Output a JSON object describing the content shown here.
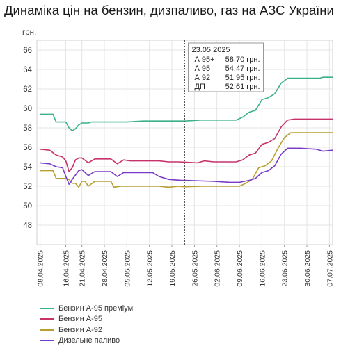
{
  "chart_data": {
    "type": "line",
    "title": "Динаміка цін на бензин, дизпаливо, газ на АЗС України",
    "ylabel": "грн.",
    "ylim": [
      46,
      67
    ],
    "yticks": [
      48,
      50,
      52,
      54,
      56,
      58,
      60,
      62,
      64,
      66
    ],
    "xlim": [
      "2025-04-07",
      "2025-07-08"
    ],
    "xticks": [
      "08.04.2025",
      "16.04.2025",
      "21.04.2025",
      "28.04.2025",
      "05.05.2025",
      "12.05.2025",
      "19.05.2025",
      "26.05.2025",
      "02.06.2025",
      "09.06.2025",
      "16.06.2025",
      "23.06.2025",
      "30.06.2025",
      "07.07.2025"
    ],
    "grid": true,
    "legend_position": "bottom",
    "cursor": {
      "date": "2025-05-23",
      "label": "23.05.2025",
      "rows": [
        {
          "name": "А 95+",
          "value": "58,70 грн."
        },
        {
          "name": "А 95",
          "value": "54,47 грн."
        },
        {
          "name": "А 92",
          "value": "51,95 грн."
        },
        {
          "name": "ДП",
          "value": "52,61 грн."
        }
      ]
    },
    "series": [
      {
        "name": "Бензин А-95 преміум",
        "color": "#3cb08a",
        "points": [
          [
            "2025-04-08",
            59.4
          ],
          [
            "2025-04-12",
            59.4
          ],
          [
            "2025-04-13",
            58.6
          ],
          [
            "2025-04-16",
            58.6
          ],
          [
            "2025-04-17",
            58.0
          ],
          [
            "2025-04-18",
            57.7
          ],
          [
            "2025-04-19",
            57.9
          ],
          [
            "2025-04-20",
            58.3
          ],
          [
            "2025-04-21",
            58.5
          ],
          [
            "2025-04-23",
            58.5
          ],
          [
            "2025-04-24",
            58.6
          ],
          [
            "2025-05-01",
            58.6
          ],
          [
            "2025-05-05",
            58.6
          ],
          [
            "2025-05-10",
            58.7
          ],
          [
            "2025-05-20",
            58.7
          ],
          [
            "2025-05-23",
            58.7
          ],
          [
            "2025-05-28",
            58.8
          ],
          [
            "2025-06-05",
            58.8
          ],
          [
            "2025-06-08",
            58.8
          ],
          [
            "2025-06-10",
            59.1
          ],
          [
            "2025-06-12",
            59.6
          ],
          [
            "2025-06-14",
            59.8
          ],
          [
            "2025-06-16",
            60.9
          ],
          [
            "2025-06-18",
            61.1
          ],
          [
            "2025-06-20",
            61.5
          ],
          [
            "2025-06-22",
            62.6
          ],
          [
            "2025-06-24",
            63.1
          ],
          [
            "2025-06-28",
            63.1
          ],
          [
            "2025-07-04",
            63.1
          ],
          [
            "2025-07-05",
            63.2
          ],
          [
            "2025-07-08",
            63.2
          ]
        ]
      },
      {
        "name": "Бензин А-95",
        "color": "#c8326a",
        "points": [
          [
            "2025-04-08",
            55.8
          ],
          [
            "2025-04-11",
            55.7
          ],
          [
            "2025-04-13",
            55.2
          ],
          [
            "2025-04-15",
            55.0
          ],
          [
            "2025-04-16",
            54.6
          ],
          [
            "2025-04-17",
            53.5
          ],
          [
            "2025-04-18",
            53.9
          ],
          [
            "2025-04-19",
            54.7
          ],
          [
            "2025-04-20",
            54.9
          ],
          [
            "2025-04-21",
            54.9
          ],
          [
            "2025-04-23",
            54.4
          ],
          [
            "2025-04-25",
            54.8
          ],
          [
            "2025-04-28",
            54.8
          ],
          [
            "2025-04-30",
            54.8
          ],
          [
            "2025-05-02",
            54.3
          ],
          [
            "2025-05-04",
            54.7
          ],
          [
            "2025-05-06",
            54.6
          ],
          [
            "2025-05-10",
            54.6
          ],
          [
            "2025-05-15",
            54.6
          ],
          [
            "2025-05-18",
            54.5
          ],
          [
            "2025-05-21",
            54.5
          ],
          [
            "2025-05-23",
            54.47
          ],
          [
            "2025-05-27",
            54.4
          ],
          [
            "2025-05-29",
            54.6
          ],
          [
            "2025-06-01",
            54.5
          ],
          [
            "2025-06-06",
            54.5
          ],
          [
            "2025-06-08",
            54.5
          ],
          [
            "2025-06-10",
            54.7
          ],
          [
            "2025-06-12",
            55.2
          ],
          [
            "2025-06-14",
            55.4
          ],
          [
            "2025-06-16",
            56.3
          ],
          [
            "2025-06-18",
            56.5
          ],
          [
            "2025-06-20",
            56.9
          ],
          [
            "2025-06-22",
            58.1
          ],
          [
            "2025-06-24",
            58.8
          ],
          [
            "2025-06-26",
            58.9
          ],
          [
            "2025-07-08",
            58.9
          ]
        ]
      },
      {
        "name": "Бензин А-92",
        "color": "#b8a030",
        "points": [
          [
            "2025-04-08",
            53.6
          ],
          [
            "2025-04-12",
            53.6
          ],
          [
            "2025-04-13",
            52.8
          ],
          [
            "2025-04-16",
            52.8
          ],
          [
            "2025-04-17",
            52.7
          ],
          [
            "2025-04-18",
            52.3
          ],
          [
            "2025-04-19",
            52.3
          ],
          [
            "2025-04-20",
            51.9
          ],
          [
            "2025-04-21",
            52.5
          ],
          [
            "2025-04-22",
            52.5
          ],
          [
            "2025-04-23",
            52.0
          ],
          [
            "2025-04-25",
            52.5
          ],
          [
            "2025-04-28",
            52.5
          ],
          [
            "2025-04-30",
            52.5
          ],
          [
            "2025-05-01",
            51.9
          ],
          [
            "2025-05-03",
            52.0
          ],
          [
            "2025-05-10",
            52.0
          ],
          [
            "2025-05-15",
            52.0
          ],
          [
            "2025-05-18",
            51.9
          ],
          [
            "2025-05-21",
            52.0
          ],
          [
            "2025-05-23",
            51.95
          ],
          [
            "2025-05-28",
            52.0
          ],
          [
            "2025-06-06",
            52.0
          ],
          [
            "2025-06-09",
            52.0
          ],
          [
            "2025-06-11",
            52.3
          ],
          [
            "2025-06-13",
            52.7
          ],
          [
            "2025-06-15",
            53.9
          ],
          [
            "2025-06-17",
            54.1
          ],
          [
            "2025-06-19",
            54.6
          ],
          [
            "2025-06-21",
            55.9
          ],
          [
            "2025-06-23",
            57.0
          ],
          [
            "2025-06-25",
            57.5
          ],
          [
            "2025-07-03",
            57.5
          ],
          [
            "2025-07-08",
            57.5
          ]
        ]
      },
      {
        "name": "Дизельне паливо",
        "color": "#7a3ac8",
        "points": [
          [
            "2025-04-08",
            54.4
          ],
          [
            "2025-04-11",
            54.3
          ],
          [
            "2025-04-13",
            54.0
          ],
          [
            "2025-04-15",
            53.9
          ],
          [
            "2025-04-16",
            53.0
          ],
          [
            "2025-04-17",
            52.2
          ],
          [
            "2025-04-18",
            52.7
          ],
          [
            "2025-04-20",
            53.6
          ],
          [
            "2025-04-21",
            53.7
          ],
          [
            "2025-04-23",
            53.1
          ],
          [
            "2025-04-25",
            53.5
          ],
          [
            "2025-04-28",
            53.5
          ],
          [
            "2025-04-30",
            53.5
          ],
          [
            "2025-05-02",
            53.0
          ],
          [
            "2025-05-04",
            53.4
          ],
          [
            "2025-05-08",
            53.4
          ],
          [
            "2025-05-13",
            53.4
          ],
          [
            "2025-05-15",
            53.0
          ],
          [
            "2025-05-18",
            52.7
          ],
          [
            "2025-05-22",
            52.6
          ],
          [
            "2025-05-23",
            52.61
          ],
          [
            "2025-06-01",
            52.5
          ],
          [
            "2025-06-06",
            52.4
          ],
          [
            "2025-06-09",
            52.4
          ],
          [
            "2025-06-12",
            52.6
          ],
          [
            "2025-06-14",
            52.8
          ],
          [
            "2025-06-16",
            53.4
          ],
          [
            "2025-06-18",
            53.6
          ],
          [
            "2025-06-20",
            54.1
          ],
          [
            "2025-06-22",
            55.3
          ],
          [
            "2025-06-24",
            55.9
          ],
          [
            "2025-06-28",
            55.9
          ],
          [
            "2025-07-03",
            55.8
          ],
          [
            "2025-07-05",
            55.6
          ],
          [
            "2025-07-08",
            55.7
          ]
        ]
      }
    ]
  }
}
